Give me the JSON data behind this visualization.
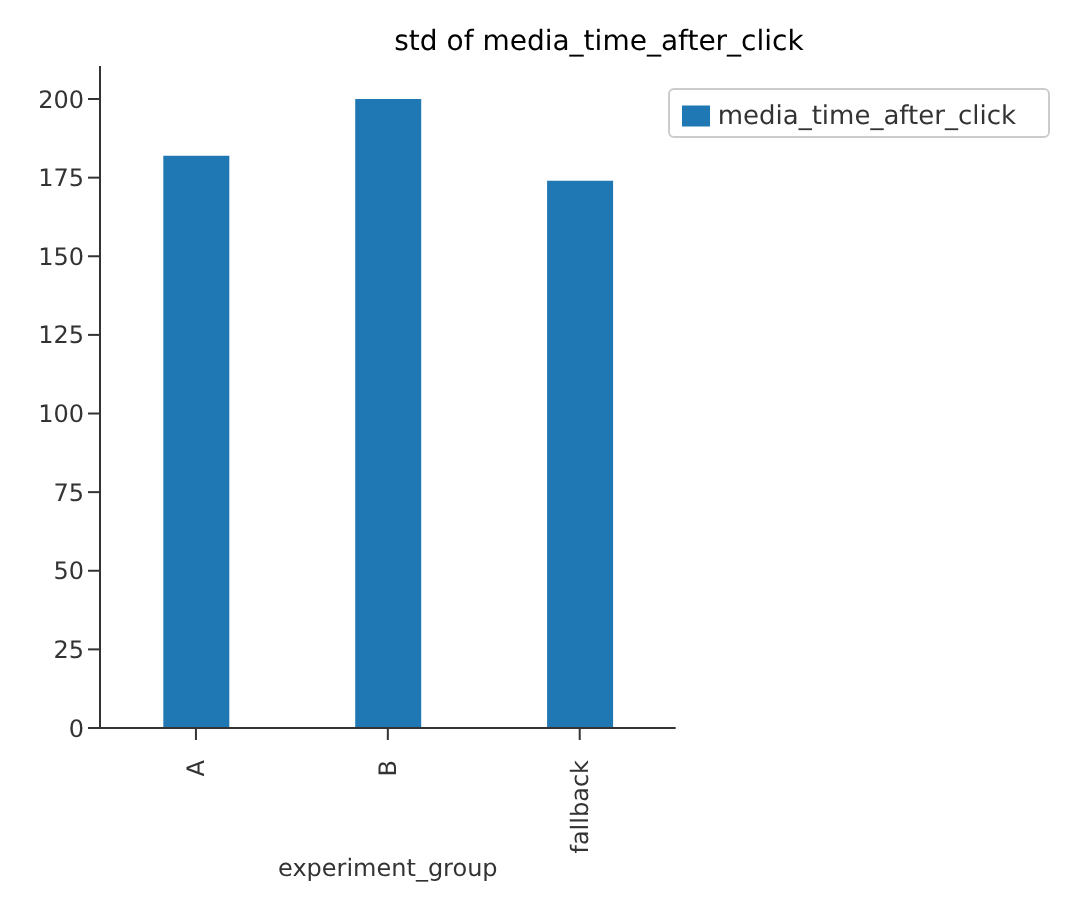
{
  "chart_data": {
    "type": "bar",
    "title": "std of media_time_after_click",
    "xlabel": "experiment_group",
    "categories": [
      "A",
      "B",
      "fallback"
    ],
    "series": [
      {
        "name": "media_time_after_click",
        "color": "#1f77b4",
        "values": [
          182,
          200,
          174
        ]
      }
    ],
    "ylim": [
      0,
      210.5
    ],
    "yticks": [
      0,
      25,
      50,
      75,
      100,
      125,
      150,
      175,
      200
    ],
    "grid": false,
    "legend": "top right"
  }
}
